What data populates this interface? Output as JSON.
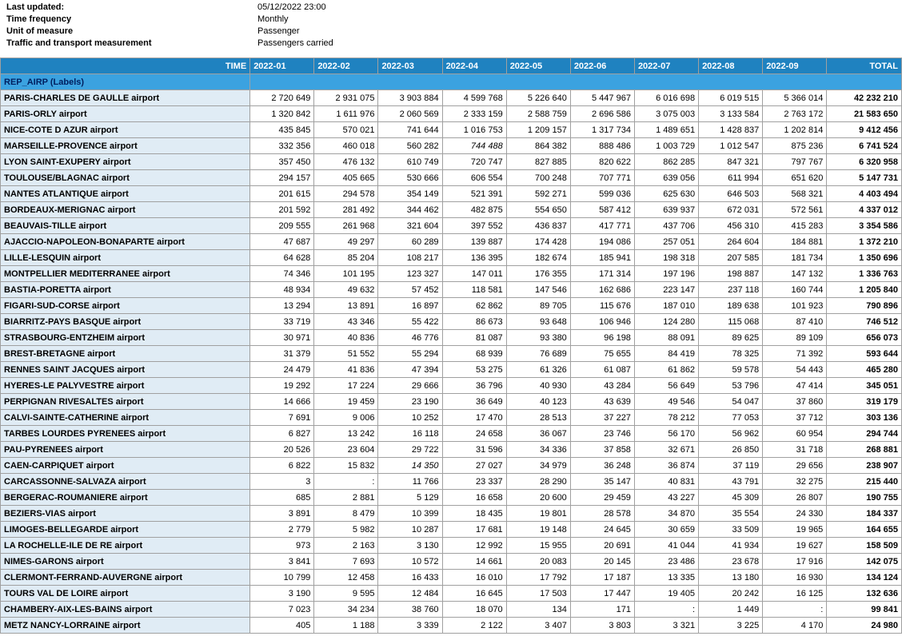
{
  "meta": {
    "last_updated_label": "Last updated:",
    "last_updated_value": "05/12/2022 23:00",
    "time_freq_label": "Time frequency",
    "time_freq_value": "Monthly",
    "unit_label": "Unit of measure",
    "unit_value": "Passenger",
    "traffic_label": "Traffic and transport measurement",
    "traffic_value": "Passengers carried"
  },
  "header": {
    "time": "TIME",
    "months": [
      "2022-01",
      "2022-02",
      "2022-03",
      "2022-04",
      "2022-05",
      "2022-06",
      "2022-07",
      "2022-08",
      "2022-09"
    ],
    "total": "TOTAL",
    "rep_airp": "REP_AIRP (Labels)"
  },
  "style": {
    "header_bg": "#1f82c0",
    "header_fg": "#ffffff",
    "subheader_bg": "#3ba2e0",
    "subheader_fg": "#002060",
    "airport_bg": "#e0ecf5",
    "border": "#a0a0a0",
    "font_size": 11
  },
  "rows": [
    {
      "airport": "PARIS-CHARLES DE GAULLE airport",
      "vals": [
        "2 720 649",
        "2 931 075",
        "3 903 884",
        "4 599 768",
        "5 226 640",
        "5 447 967",
        "6 016 698",
        "6 019 515",
        "5 366 014"
      ],
      "total": "42 232 210"
    },
    {
      "airport": "PARIS-ORLY airport",
      "vals": [
        "1 320 842",
        "1 611 976",
        "2 060 569",
        "2 333 159",
        "2 588 759",
        "2 696 586",
        "3 075 003",
        "3 133 584",
        "2 763 172"
      ],
      "total": "21 583 650"
    },
    {
      "airport": "NICE-COTE D AZUR airport",
      "vals": [
        "435 845",
        "570 021",
        "741 644",
        "1 016 753",
        "1 209 157",
        "1 317 734",
        "1 489 651",
        "1 428 837",
        "1 202 814"
      ],
      "total": "9 412 456"
    },
    {
      "airport": "MARSEILLE-PROVENCE airport",
      "vals": [
        "332 356",
        "460 018",
        "560 282",
        "744 488",
        "864 382",
        "888 486",
        "1 003 729",
        "1 012 547",
        "875 236"
      ],
      "total": "6 741 524",
      "italic": [
        3
      ]
    },
    {
      "airport": "LYON SAINT-EXUPERY airport",
      "vals": [
        "357 450",
        "476 132",
        "610 749",
        "720 747",
        "827 885",
        "820 622",
        "862 285",
        "847 321",
        "797 767"
      ],
      "total": "6 320 958"
    },
    {
      "airport": "TOULOUSE/BLAGNAC airport",
      "vals": [
        "294 157",
        "405 665",
        "530 666",
        "606 554",
        "700 248",
        "707 771",
        "639 056",
        "611 994",
        "651 620"
      ],
      "total": "5 147 731"
    },
    {
      "airport": "NANTES ATLANTIQUE airport",
      "vals": [
        "201 615",
        "294 578",
        "354 149",
        "521 391",
        "592 271",
        "599 036",
        "625 630",
        "646 503",
        "568 321"
      ],
      "total": "4 403 494"
    },
    {
      "airport": "BORDEAUX-MERIGNAC airport",
      "vals": [
        "201 592",
        "281 492",
        "344 462",
        "482 875",
        "554 650",
        "587 412",
        "639 937",
        "672 031",
        "572 561"
      ],
      "total": "4 337 012"
    },
    {
      "airport": "BEAUVAIS-TILLE airport",
      "vals": [
        "209 555",
        "261 968",
        "321 604",
        "397 552",
        "436 837",
        "417 771",
        "437 706",
        "456 310",
        "415 283"
      ],
      "total": "3 354 586"
    },
    {
      "airport": "AJACCIO-NAPOLEON-BONAPARTE airport",
      "vals": [
        "47 687",
        "49 297",
        "60 289",
        "139 887",
        "174 428",
        "194 086",
        "257 051",
        "264 604",
        "184 881"
      ],
      "total": "1 372 210"
    },
    {
      "airport": "LILLE-LESQUIN airport",
      "vals": [
        "64 628",
        "85 204",
        "108 217",
        "136 395",
        "182 674",
        "185 941",
        "198 318",
        "207 585",
        "181 734"
      ],
      "total": "1 350 696"
    },
    {
      "airport": "MONTPELLIER MEDITERRANEE airport",
      "vals": [
        "74 346",
        "101 195",
        "123 327",
        "147 011",
        "176 355",
        "171 314",
        "197 196",
        "198 887",
        "147 132"
      ],
      "total": "1 336 763"
    },
    {
      "airport": "BASTIA-PORETTA airport",
      "vals": [
        "48 934",
        "49 632",
        "57 452",
        "118 581",
        "147 546",
        "162 686",
        "223 147",
        "237 118",
        "160 744"
      ],
      "total": "1 205 840"
    },
    {
      "airport": "FIGARI-SUD-CORSE airport",
      "vals": [
        "13 294",
        "13 891",
        "16 897",
        "62 862",
        "89 705",
        "115 676",
        "187 010",
        "189 638",
        "101 923"
      ],
      "total": "790 896"
    },
    {
      "airport": "BIARRITZ-PAYS BASQUE airport",
      "vals": [
        "33 719",
        "43 346",
        "55 422",
        "86 673",
        "93 648",
        "106 946",
        "124 280",
        "115 068",
        "87 410"
      ],
      "total": "746 512"
    },
    {
      "airport": "STRASBOURG-ENTZHEIM airport",
      "vals": [
        "30 971",
        "40 836",
        "46 776",
        "81 087",
        "93 380",
        "96 198",
        "88 091",
        "89 625",
        "89 109"
      ],
      "total": "656 073"
    },
    {
      "airport": "BREST-BRETAGNE airport",
      "vals": [
        "31 379",
        "51 552",
        "55 294",
        "68 939",
        "76 689",
        "75 655",
        "84 419",
        "78 325",
        "71 392"
      ],
      "total": "593 644"
    },
    {
      "airport": "RENNES SAINT JACQUES airport",
      "vals": [
        "24 479",
        "41 836",
        "47 394",
        "53 275",
        "61 326",
        "61 087",
        "61 862",
        "59 578",
        "54 443"
      ],
      "total": "465 280"
    },
    {
      "airport": "HYERES-LE PALYVESTRE airport",
      "vals": [
        "19 292",
        "17 224",
        "29 666",
        "36 796",
        "40 930",
        "43 284",
        "56 649",
        "53 796",
        "47 414"
      ],
      "total": "345 051"
    },
    {
      "airport": "PERPIGNAN RIVESALTES airport",
      "vals": [
        "14 666",
        "19 459",
        "23 190",
        "36 649",
        "40 123",
        "43 639",
        "49 546",
        "54 047",
        "37 860"
      ],
      "total": "319 179"
    },
    {
      "airport": "CALVI-SAINTE-CATHERINE airport",
      "vals": [
        "7 691",
        "9 006",
        "10 252",
        "17 470",
        "28 513",
        "37 227",
        "78 212",
        "77 053",
        "37 712"
      ],
      "total": "303 136"
    },
    {
      "airport": "TARBES LOURDES PYRENEES airport",
      "vals": [
        "6 827",
        "13 242",
        "16 118",
        "24 658",
        "36 067",
        "23 746",
        "56 170",
        "56 962",
        "60 954"
      ],
      "total": "294 744"
    },
    {
      "airport": "PAU-PYRENEES airport",
      "vals": [
        "20 526",
        "23 604",
        "29 722",
        "31 596",
        "34 336",
        "37 858",
        "32 671",
        "26 850",
        "31 718"
      ],
      "total": "268 881"
    },
    {
      "airport": "CAEN-CARPIQUET airport",
      "vals": [
        "6 822",
        "15 832",
        "14 350",
        "27 027",
        "34 979",
        "36 248",
        "36 874",
        "37 119",
        "29 656"
      ],
      "total": "238 907",
      "italic": [
        2
      ]
    },
    {
      "airport": "CARCASSONNE-SALVAZA airport",
      "vals": [
        "3",
        ":",
        "11 766",
        "23 337",
        "28 290",
        "35 147",
        "40 831",
        "43 791",
        "32 275"
      ],
      "total": "215 440"
    },
    {
      "airport": "BERGERAC-ROUMANIERE airport",
      "vals": [
        "685",
        "2 881",
        "5 129",
        "16 658",
        "20 600",
        "29 459",
        "43 227",
        "45 309",
        "26 807"
      ],
      "total": "190 755"
    },
    {
      "airport": "BEZIERS-VIAS airport",
      "vals": [
        "3 891",
        "8 479",
        "10 399",
        "18 435",
        "19 801",
        "28 578",
        "34 870",
        "35 554",
        "24 330"
      ],
      "total": "184 337"
    },
    {
      "airport": "LIMOGES-BELLEGARDE airport",
      "vals": [
        "2 779",
        "5 982",
        "10 287",
        "17 681",
        "19 148",
        "24 645",
        "30 659",
        "33 509",
        "19 965"
      ],
      "total": "164 655"
    },
    {
      "airport": "LA ROCHELLE-ILE DE RE airport",
      "vals": [
        "973",
        "2 163",
        "3 130",
        "12 992",
        "15 955",
        "20 691",
        "41 044",
        "41 934",
        "19 627"
      ],
      "total": "158 509"
    },
    {
      "airport": "NIMES-GARONS airport",
      "vals": [
        "3 841",
        "7 693",
        "10 572",
        "14 661",
        "20 083",
        "20 145",
        "23 486",
        "23 678",
        "17 916"
      ],
      "total": "142 075"
    },
    {
      "airport": "CLERMONT-FERRAND-AUVERGNE airport",
      "vals": [
        "10 799",
        "12 458",
        "16 433",
        "16 010",
        "17 792",
        "17 187",
        "13 335",
        "13 180",
        "16 930"
      ],
      "total": "134 124"
    },
    {
      "airport": "TOURS VAL DE LOIRE airport",
      "vals": [
        "3 190",
        "9 595",
        "12 484",
        "16 645",
        "17 503",
        "17 447",
        "19 405",
        "20 242",
        "16 125"
      ],
      "total": "132 636"
    },
    {
      "airport": "CHAMBERY-AIX-LES-BAINS airport",
      "vals": [
        "7 023",
        "34 234",
        "38 760",
        "18 070",
        "134",
        "171",
        ":",
        "1 449",
        ":"
      ],
      "total": "99 841"
    },
    {
      "airport": "METZ NANCY-LORRAINE airport",
      "vals": [
        "405",
        "1 188",
        "3 339",
        "2 122",
        "3 407",
        "3 803",
        "3 321",
        "3 225",
        "4 170"
      ],
      "total": "24 980"
    }
  ]
}
